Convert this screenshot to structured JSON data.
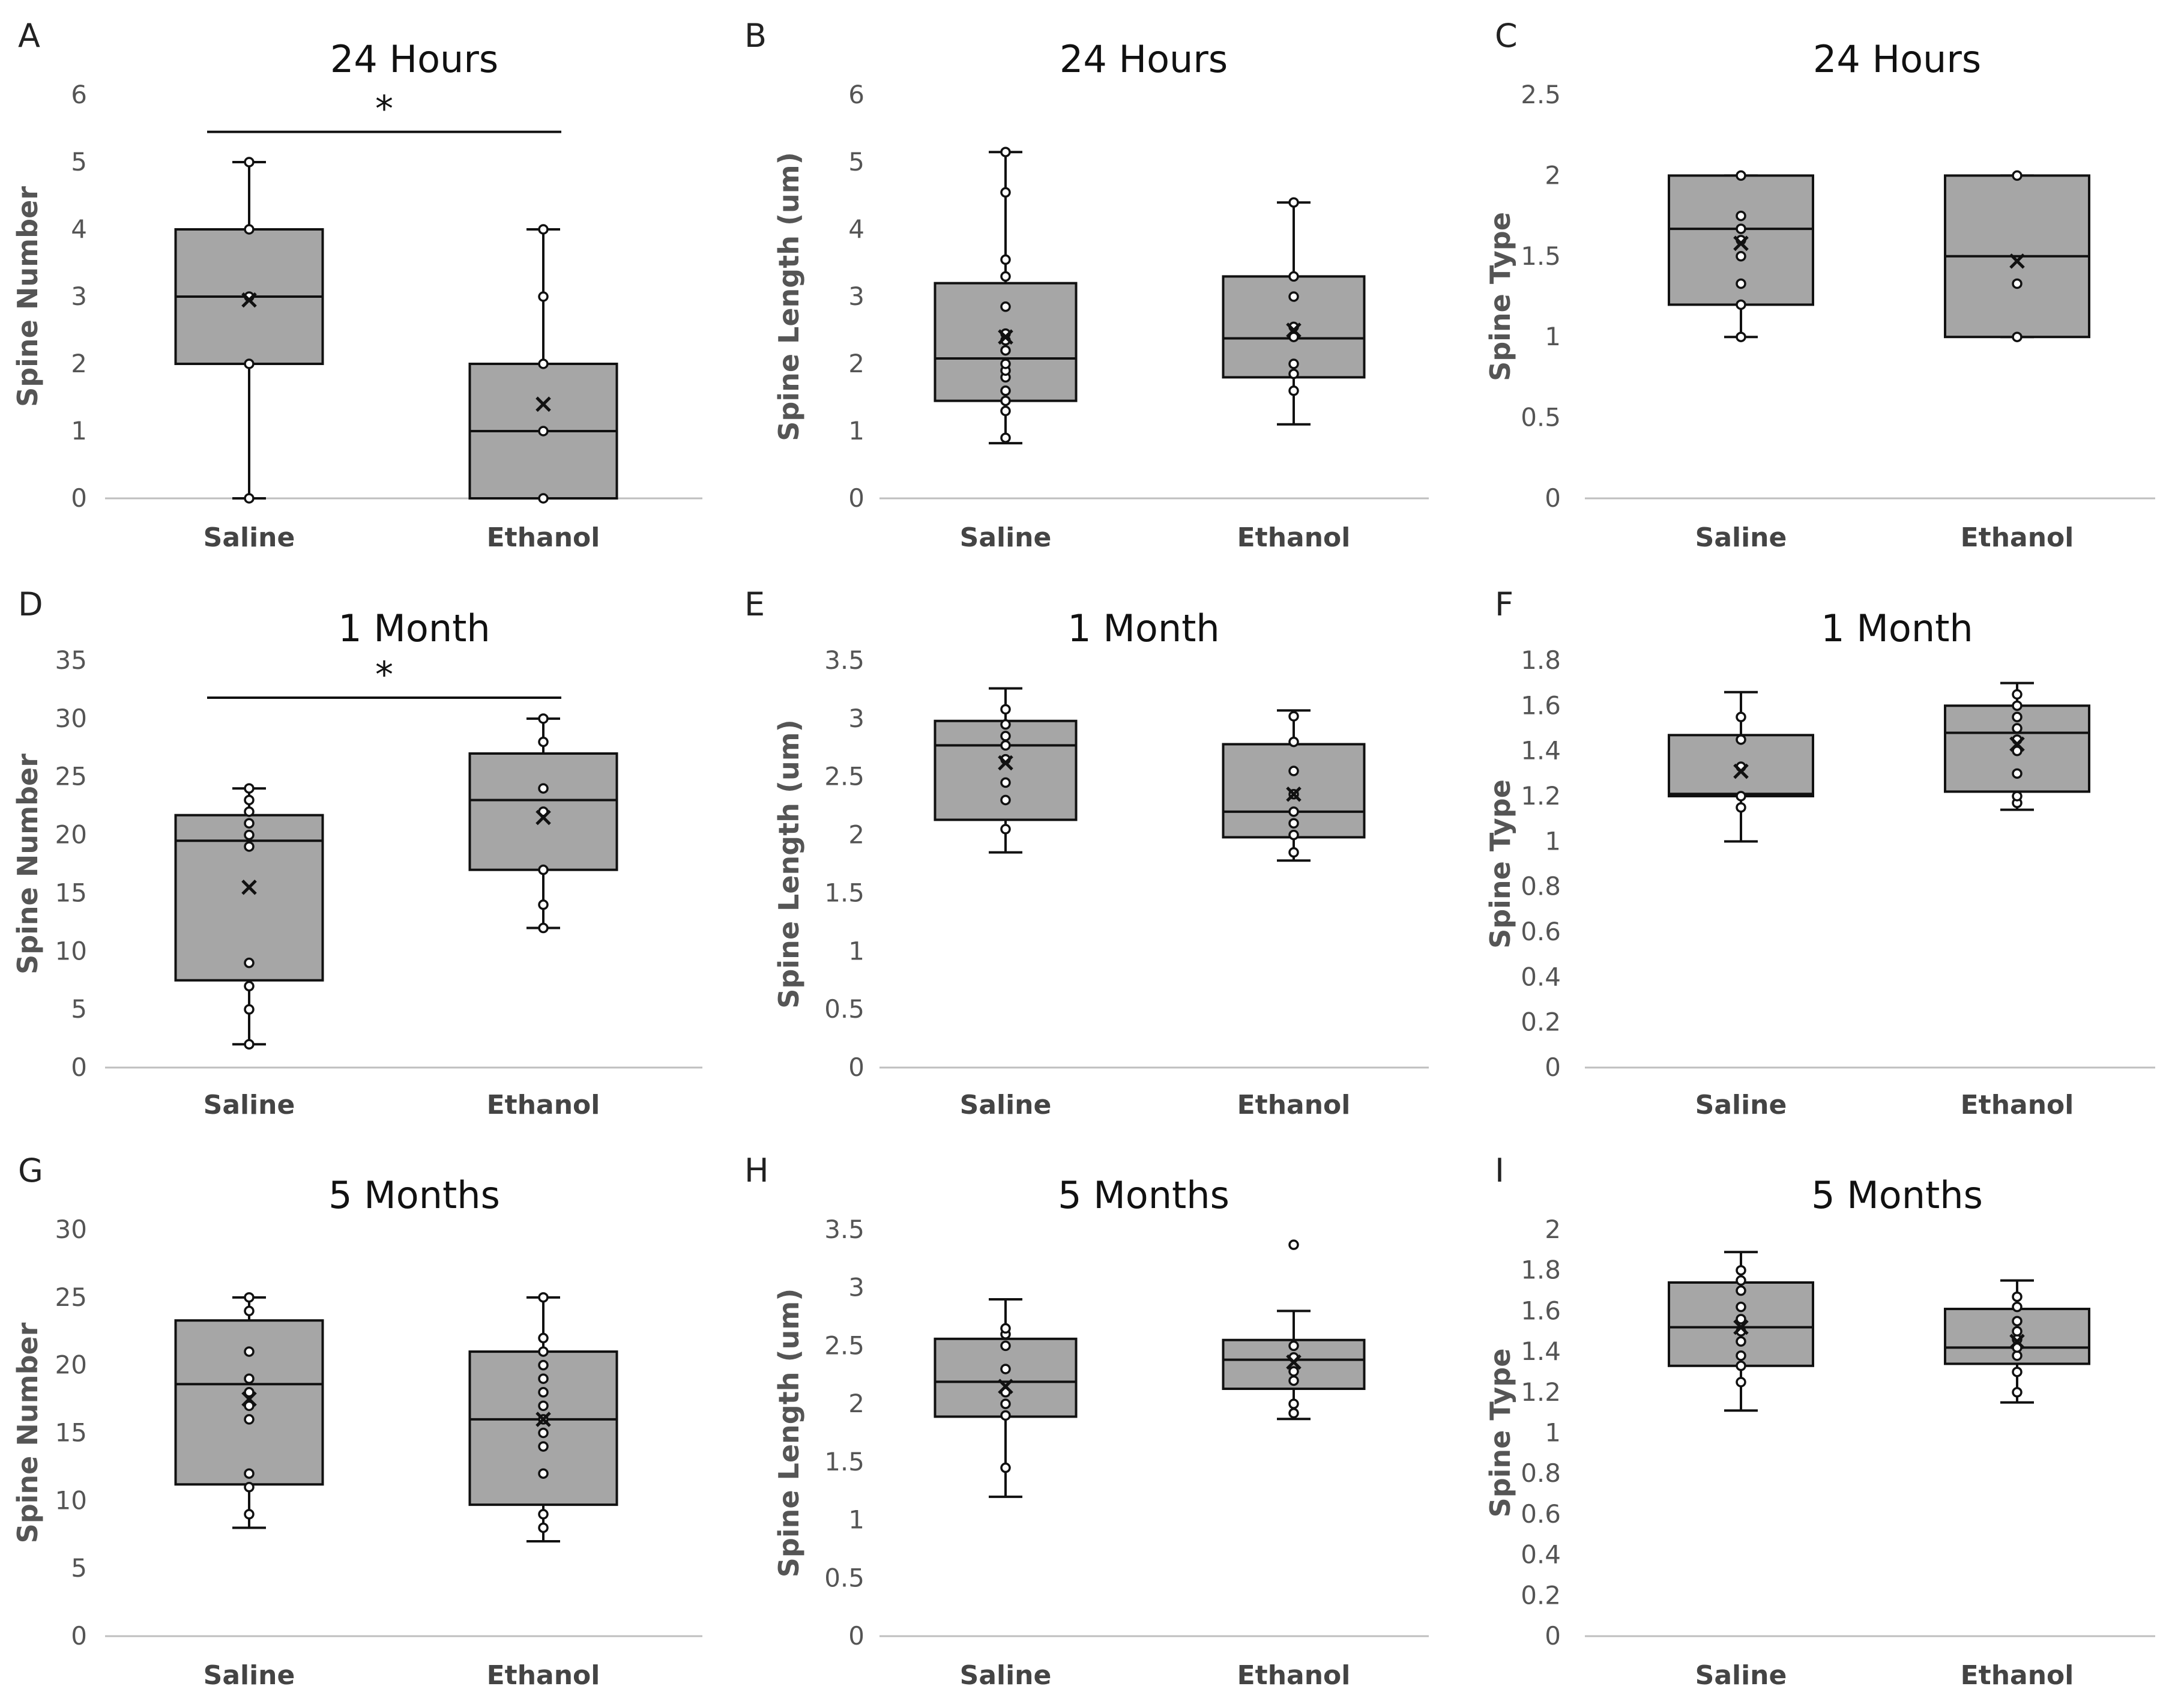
{
  "chart_data": [
    {
      "panel": "A",
      "type": "box",
      "title": "24 Hours",
      "ylabel": "Spine Number",
      "ylim": [
        0,
        6
      ],
      "yticks": [
        0,
        1,
        2,
        3,
        4,
        5,
        6
      ],
      "tick_labels": [
        "0",
        "1",
        "2",
        "3",
        "4",
        "5",
        "6"
      ],
      "categories": [
        "Saline",
        "Ethanol"
      ],
      "boxes": [
        {
          "min": 0,
          "q1": 2,
          "median": 3,
          "q3": 4,
          "max": 5,
          "mean": 2.95,
          "points": [
            0,
            2,
            3,
            4,
            5
          ]
        },
        {
          "min": 0,
          "q1": 0,
          "median": 1,
          "q3": 2,
          "max": 4,
          "mean": 1.4,
          "points": [
            0,
            1,
            2,
            3,
            4
          ]
        }
      ],
      "significance": {
        "y": 5.45,
        "label": "*"
      }
    },
    {
      "panel": "B",
      "type": "box",
      "title": "24 Hours",
      "ylabel": "Spine Length (um)",
      "ylim": [
        0,
        6
      ],
      "yticks": [
        0,
        1,
        2,
        3,
        4,
        5,
        6
      ],
      "tick_labels": [
        "0",
        "1",
        "2",
        "3",
        "4",
        "5",
        "6"
      ],
      "categories": [
        "Saline",
        "Ethanol"
      ],
      "boxes": [
        {
          "min": 0.82,
          "q1": 1.45,
          "median": 2.08,
          "q3": 3.2,
          "max": 5.15,
          "mean": 2.4,
          "points": [
            0.9,
            1.3,
            1.45,
            1.6,
            1.8,
            1.9,
            2.0,
            2.2,
            2.35,
            2.45,
            2.85,
            3.3,
            3.55,
            4.55,
            5.15
          ]
        },
        {
          "min": 1.1,
          "q1": 1.8,
          "median": 2.38,
          "q3": 3.3,
          "max": 4.4,
          "mean": 2.5,
          "points": [
            1.6,
            1.85,
            2.0,
            2.4,
            2.55,
            3.0,
            3.3,
            4.4
          ]
        }
      ]
    },
    {
      "panel": "C",
      "type": "box",
      "title": "24 Hours",
      "ylabel": "Spine Type",
      "ylim": [
        0,
        2.5
      ],
      "yticks": [
        0,
        0.5,
        1,
        1.5,
        2,
        2.5
      ],
      "tick_labels": [
        "0",
        "0.5",
        "1",
        "1.5",
        "2",
        "2.5"
      ],
      "categories": [
        "Saline",
        "Ethanol"
      ],
      "boxes": [
        {
          "min": 1,
          "q1": 1.2,
          "median": 1.67,
          "q3": 2,
          "max": 2,
          "mean": 1.58,
          "points": [
            1,
            1.2,
            1.33,
            1.5,
            1.6,
            1.67,
            1.75,
            2
          ]
        },
        {
          "min": 1,
          "q1": 1,
          "median": 1.5,
          "q3": 2,
          "max": 2,
          "mean": 1.47,
          "points": [
            1,
            1.33,
            2
          ]
        }
      ]
    },
    {
      "panel": "D",
      "type": "box",
      "title": "1 Month",
      "ylabel": "Spine Number",
      "ylim": [
        0,
        35
      ],
      "yticks": [
        0,
        5,
        10,
        15,
        20,
        25,
        30,
        35
      ],
      "tick_labels": [
        "0",
        "5",
        "10",
        "15",
        "20",
        "25",
        "30",
        "35"
      ],
      "categories": [
        "Saline",
        "Ethanol"
      ],
      "boxes": [
        {
          "min": 2,
          "q1": 7.5,
          "median": 19.5,
          "q3": 21.7,
          "max": 24,
          "mean": 15.5,
          "points": [
            2,
            5,
            7,
            9,
            19,
            20,
            21,
            22,
            23,
            24
          ]
        },
        {
          "min": 12,
          "q1": 17,
          "median": 23,
          "q3": 27,
          "max": 30,
          "mean": 21.5,
          "points": [
            12,
            14,
            17,
            22,
            24,
            28,
            30
          ]
        }
      ],
      "significance": {
        "y": 31.8,
        "label": "*"
      }
    },
    {
      "panel": "E",
      "type": "box",
      "title": "1 Month",
      "ylabel": "Spine Length (um)",
      "ylim": [
        0,
        3.5
      ],
      "yticks": [
        0,
        0.5,
        1,
        1.5,
        2,
        2.5,
        3,
        3.5
      ],
      "tick_labels": [
        "0",
        "0.5",
        "1",
        "1.5",
        "2",
        "2.5",
        "3",
        "3.5"
      ],
      "categories": [
        "Saline",
        "Ethanol"
      ],
      "boxes": [
        {
          "min": 1.85,
          "q1": 2.13,
          "median": 2.77,
          "q3": 2.98,
          "max": 3.26,
          "mean": 2.62,
          "points": [
            2.05,
            2.3,
            2.45,
            2.65,
            2.77,
            2.85,
            2.95,
            3.08
          ]
        },
        {
          "min": 1.78,
          "q1": 1.98,
          "median": 2.2,
          "q3": 2.78,
          "max": 3.07,
          "mean": 2.35,
          "points": [
            1.85,
            2.0,
            2.1,
            2.2,
            2.35,
            2.55,
            2.8,
            3.02
          ]
        }
      ]
    },
    {
      "panel": "F",
      "type": "box",
      "title": "1 Month",
      "ylabel": "Spine Type",
      "ylim": [
        0,
        1.8
      ],
      "yticks": [
        0,
        0.2,
        0.4,
        0.6,
        0.8,
        1,
        1.2,
        1.4,
        1.6,
        1.8
      ],
      "tick_labels": [
        "0",
        "0.2",
        "0.4",
        "0.6",
        "0.8",
        "1",
        "1.2",
        "1.4",
        "1.6",
        "1.8"
      ],
      "categories": [
        "Saline",
        "Ethanol"
      ],
      "boxes": [
        {
          "min": 1,
          "q1": 1.2,
          "median": 1.21,
          "q3": 1.47,
          "max": 1.66,
          "mean": 1.31,
          "points": [
            1.15,
            1.2,
            1.33,
            1.45,
            1.55
          ]
        },
        {
          "min": 1.14,
          "q1": 1.22,
          "median": 1.48,
          "q3": 1.6,
          "max": 1.7,
          "mean": 1.43,
          "points": [
            1.17,
            1.2,
            1.3,
            1.4,
            1.45,
            1.5,
            1.55,
            1.6,
            1.65
          ]
        }
      ]
    },
    {
      "panel": "G",
      "type": "box",
      "title": "5 Months",
      "ylabel": "Spine Number",
      "ylim": [
        0,
        30
      ],
      "yticks": [
        0,
        5,
        10,
        15,
        20,
        25,
        30
      ],
      "tick_labels": [
        "0",
        "5",
        "10",
        "15",
        "20",
        "25",
        "30"
      ],
      "categories": [
        "Saline",
        "Ethanol"
      ],
      "boxes": [
        {
          "min": 8,
          "q1": 11.2,
          "median": 18.6,
          "q3": 23.3,
          "max": 25,
          "mean": 17.5,
          "points": [
            9,
            11,
            12,
            16,
            17,
            18,
            19,
            21,
            24,
            25
          ]
        },
        {
          "min": 7,
          "q1": 9.7,
          "median": 16,
          "q3": 21,
          "max": 25,
          "mean": 16,
          "points": [
            8,
            9,
            12,
            14,
            15,
            16,
            17,
            18,
            19,
            20,
            21,
            22,
            25
          ]
        }
      ]
    },
    {
      "panel": "H",
      "type": "box",
      "title": "5 Months",
      "ylabel": "Spine Length (um)",
      "ylim": [
        0,
        3.5
      ],
      "yticks": [
        0,
        0.5,
        1,
        1.5,
        2,
        2.5,
        3,
        3.5
      ],
      "tick_labels": [
        "0",
        "0.5",
        "1",
        "1.5",
        "2",
        "2.5",
        "3",
        "3.5"
      ],
      "categories": [
        "Saline",
        "Ethanol"
      ],
      "boxes": [
        {
          "min": 1.2,
          "q1": 1.89,
          "median": 2.19,
          "q3": 2.56,
          "max": 2.9,
          "mean": 2.15,
          "points": [
            1.45,
            1.9,
            2.0,
            2.1,
            2.3,
            2.5,
            2.6,
            2.65
          ]
        },
        {
          "min": 1.87,
          "q1": 2.13,
          "median": 2.38,
          "q3": 2.55,
          "max": 2.8,
          "mean": 2.36,
          "points": [
            1.92,
            2.0,
            2.2,
            2.28,
            2.4,
            2.5,
            3.37
          ]
        }
      ]
    },
    {
      "panel": "I",
      "type": "box",
      "title": "5 Months",
      "ylabel": "Spine Type",
      "ylim": [
        0,
        2
      ],
      "yticks": [
        0,
        0.2,
        0.4,
        0.6,
        0.8,
        1,
        1.2,
        1.4,
        1.6,
        1.8,
        2
      ],
      "tick_labels": [
        "0",
        "0.2",
        "0.4",
        "0.6",
        "0.8",
        "1",
        "1.2",
        "1.4",
        "1.6",
        "1.8",
        "2"
      ],
      "categories": [
        "Saline",
        "Ethanol"
      ],
      "boxes": [
        {
          "min": 1.11,
          "q1": 1.33,
          "median": 1.52,
          "q3": 1.74,
          "max": 1.89,
          "mean": 1.52,
          "points": [
            1.25,
            1.33,
            1.38,
            1.45,
            1.5,
            1.56,
            1.62,
            1.7,
            1.75,
            1.8
          ]
        },
        {
          "min": 1.15,
          "q1": 1.34,
          "median": 1.42,
          "q3": 1.61,
          "max": 1.75,
          "mean": 1.45,
          "points": [
            1.2,
            1.3,
            1.38,
            1.42,
            1.46,
            1.5,
            1.55,
            1.62,
            1.67
          ]
        }
      ]
    }
  ],
  "style": {
    "box_fill": "#a6a6a6",
    "box_stroke": "#111111",
    "point_fill": "#ffffff",
    "axis_color": "#bfbfbf"
  }
}
